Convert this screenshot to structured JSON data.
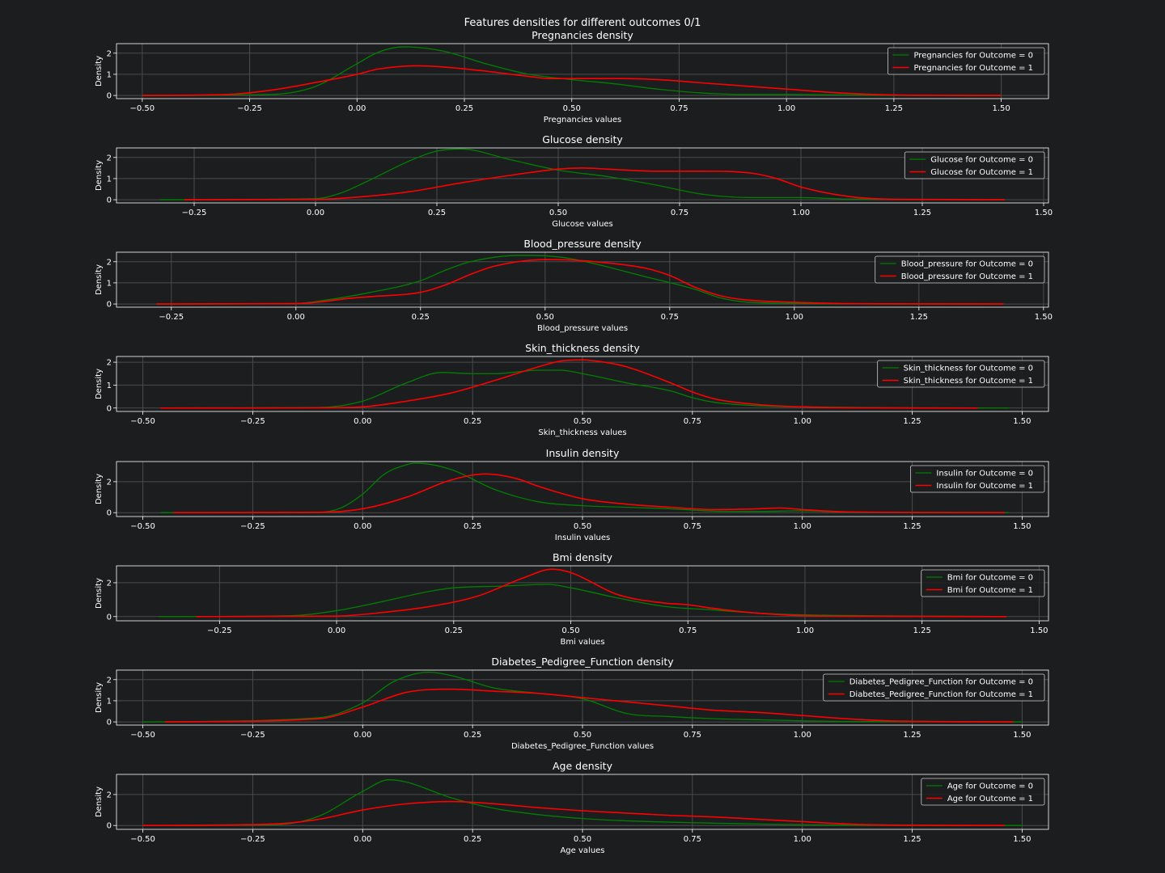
{
  "figure": {
    "suptitle": "Features densities for different outcomes 0/1",
    "background": "#1c1d1f",
    "axes_color": "#ffffff",
    "grid_color": "#4a4b4d",
    "series_colors": [
      "#008000",
      "#ff0000"
    ]
  },
  "chart_data": [
    {
      "type": "line",
      "title": "Pregnancies density",
      "xlabel": "Pregnancies values",
      "ylabel": "Density",
      "xlim": [
        -0.56,
        1.61
      ],
      "ylim": [
        -0.15,
        2.45
      ],
      "xticks": [
        -0.5,
        -0.25,
        0,
        0.25,
        0.5,
        0.75,
        1.0,
        1.25,
        1.5
      ],
      "xtick_labels": [
        "−0.50",
        "−0.25",
        "0.00",
        "0.25",
        "0.50",
        "0.75",
        "1.00",
        "1.25",
        "1.50"
      ],
      "yticks": [
        0,
        1,
        2
      ],
      "ytick_labels": [
        "0",
        "1",
        "2"
      ],
      "legend_position": "upper right",
      "grid": true,
      "series": [
        {
          "name": "Pregnancies for Outcome = 0",
          "color": "#008000",
          "x": [
            -0.5,
            -0.2,
            -0.1,
            0.0,
            0.05,
            0.11,
            0.2,
            0.3,
            0.4,
            0.5,
            0.6,
            0.7,
            0.8,
            0.9,
            1.0,
            1.1,
            1.2,
            1.5
          ],
          "y": [
            0.0,
            0.05,
            0.4,
            1.5,
            2.05,
            2.3,
            2.1,
            1.5,
            1.0,
            0.75,
            0.55,
            0.3,
            0.12,
            0.05,
            0.05,
            0.03,
            0.01,
            0.0
          ]
        },
        {
          "name": "Pregnancies for Outcome = 1",
          "color": "#ff0000",
          "x": [
            -0.5,
            -0.3,
            -0.2,
            -0.1,
            0.0,
            0.05,
            0.14,
            0.2,
            0.3,
            0.4,
            0.45,
            0.55,
            0.62,
            0.7,
            0.8,
            0.9,
            1.0,
            1.1,
            1.2,
            1.3,
            1.5
          ],
          "y": [
            0.0,
            0.05,
            0.25,
            0.6,
            1.0,
            1.25,
            1.4,
            1.35,
            1.15,
            0.9,
            0.8,
            0.8,
            0.8,
            0.75,
            0.6,
            0.45,
            0.3,
            0.15,
            0.05,
            0.01,
            0.0
          ]
        }
      ]
    },
    {
      "type": "line",
      "title": "Glucose density",
      "xlabel": "Glucose values",
      "ylabel": "Density",
      "xlim": [
        -0.41,
        1.51
      ],
      "ylim": [
        -0.15,
        2.45
      ],
      "xticks": [
        -0.25,
        0,
        0.25,
        0.5,
        0.75,
        1.0,
        1.25,
        1.5
      ],
      "xtick_labels": [
        "−0.25",
        "0.00",
        "0.25",
        "0.50",
        "0.75",
        "1.00",
        "1.25",
        "1.50"
      ],
      "yticks": [
        0,
        1,
        2
      ],
      "ytick_labels": [
        "0",
        "1",
        "2"
      ],
      "legend_position": "upper right",
      "grid": true,
      "series": [
        {
          "name": "Glucose for Outcome = 0",
          "color": "#008000",
          "x": [
            -0.32,
            0.0,
            0.05,
            0.1,
            0.2,
            0.25,
            0.3,
            0.4,
            0.5,
            0.6,
            0.7,
            0.8,
            0.9,
            1.0,
            1.1,
            1.42
          ],
          "y": [
            0.0,
            0.05,
            0.3,
            0.8,
            1.9,
            2.3,
            2.4,
            1.9,
            1.4,
            1.1,
            0.7,
            0.25,
            0.1,
            0.1,
            0.03,
            0.0
          ]
        },
        {
          "name": "Glucose for Outcome = 1",
          "color": "#ff0000",
          "x": [
            -0.27,
            0.0,
            0.1,
            0.2,
            0.3,
            0.4,
            0.5,
            0.55,
            0.6,
            0.7,
            0.8,
            0.9,
            0.95,
            1.0,
            1.1,
            1.2,
            1.42
          ],
          "y": [
            0.0,
            0.02,
            0.15,
            0.4,
            0.8,
            1.15,
            1.45,
            1.5,
            1.45,
            1.35,
            1.35,
            1.25,
            1.0,
            0.6,
            0.15,
            0.02,
            0.0
          ]
        }
      ]
    },
    {
      "type": "line",
      "title": "Blood_pressure density",
      "xlabel": "Blood_pressure values",
      "ylabel": "Density",
      "xlim": [
        -0.36,
        1.51
      ],
      "ylim": [
        -0.15,
        2.45
      ],
      "xticks": [
        -0.25,
        0,
        0.25,
        0.5,
        0.75,
        1.0,
        1.25,
        1.5
      ],
      "xtick_labels": [
        "−0.25",
        "0.00",
        "0.25",
        "0.50",
        "0.75",
        "1.00",
        "1.25",
        "1.50"
      ],
      "yticks": [
        0,
        1,
        2
      ],
      "ytick_labels": [
        "0",
        "1",
        "2"
      ],
      "legend_position": "upper right",
      "grid": true,
      "series": [
        {
          "name": "Blood_pressure for Outcome = 0",
          "color": "#008000",
          "x": [
            -0.28,
            0.0,
            0.05,
            0.15,
            0.25,
            0.3,
            0.35,
            0.45,
            0.5,
            0.55,
            0.6,
            0.7,
            0.8,
            0.85,
            0.9,
            1.0,
            1.1,
            1.42
          ],
          "y": [
            0.0,
            0.02,
            0.15,
            0.55,
            1.1,
            1.6,
            2.0,
            2.3,
            2.28,
            2.15,
            1.9,
            1.3,
            0.7,
            0.3,
            0.1,
            0.03,
            0.01,
            0.0
          ]
        },
        {
          "name": "Blood_pressure for Outcome = 1",
          "color": "#ff0000",
          "x": [
            -0.28,
            0.0,
            0.05,
            0.1,
            0.15,
            0.25,
            0.3,
            0.35,
            0.4,
            0.5,
            0.55,
            0.6,
            0.7,
            0.75,
            0.8,
            0.85,
            0.9,
            1.0,
            1.1,
            1.42
          ],
          "y": [
            0.0,
            0.02,
            0.1,
            0.25,
            0.35,
            0.55,
            0.9,
            1.4,
            1.8,
            2.1,
            2.08,
            2.0,
            1.7,
            1.35,
            0.8,
            0.4,
            0.2,
            0.08,
            0.02,
            0.0
          ]
        }
      ]
    },
    {
      "type": "line",
      "title": "Skin_thickness density",
      "xlabel": "Skin_thickness values",
      "ylabel": "Density",
      "xlim": [
        -0.56,
        1.56
      ],
      "ylim": [
        -0.15,
        2.25
      ],
      "xticks": [
        -0.5,
        -0.25,
        0,
        0.25,
        0.5,
        0.75,
        1.0,
        1.25,
        1.5
      ],
      "xtick_labels": [
        "−0.50",
        "−0.25",
        "0.00",
        "0.25",
        "0.50",
        "0.75",
        "1.00",
        "1.25",
        "1.50"
      ],
      "yticks": [
        0,
        1,
        2
      ],
      "ytick_labels": [
        "0",
        "1",
        "2"
      ],
      "legend_position": "upper right",
      "grid": true,
      "series": [
        {
          "name": "Skin_thickness for Outcome = 0",
          "color": "#008000",
          "x": [
            -0.46,
            -0.1,
            0.0,
            0.1,
            0.18,
            0.25,
            0.3,
            0.4,
            0.45,
            0.5,
            0.6,
            0.7,
            0.75,
            0.8,
            0.9,
            1.0,
            1.2,
            1.47
          ],
          "y": [
            0.0,
            0.02,
            0.3,
            1.1,
            1.55,
            1.5,
            1.5,
            1.65,
            1.65,
            1.5,
            1.1,
            0.75,
            0.45,
            0.25,
            0.1,
            0.05,
            0.01,
            0.0
          ]
        },
        {
          "name": "Skin_thickness for Outcome = 1",
          "color": "#ff0000",
          "x": [
            -0.46,
            -0.1,
            0.0,
            0.1,
            0.2,
            0.3,
            0.4,
            0.45,
            0.5,
            0.55,
            0.6,
            0.7,
            0.75,
            0.8,
            0.9,
            1.0,
            1.1,
            1.4
          ],
          "y": [
            0.0,
            0.01,
            0.05,
            0.3,
            0.65,
            1.2,
            1.8,
            2.05,
            2.1,
            2.0,
            1.8,
            1.1,
            0.7,
            0.4,
            0.15,
            0.05,
            0.01,
            0.0
          ]
        }
      ]
    },
    {
      "type": "line",
      "title": "Insulin density",
      "xlabel": "Insulin values",
      "ylabel": "Density",
      "xlim": [
        -0.56,
        1.56
      ],
      "ylim": [
        -0.25,
        3.3
      ],
      "xticks": [
        -0.5,
        -0.25,
        0,
        0.25,
        0.5,
        0.75,
        1.0,
        1.25,
        1.5
      ],
      "xtick_labels": [
        "−0.50",
        "−0.25",
        "0.00",
        "0.25",
        "0.50",
        "0.75",
        "1.00",
        "1.25",
        "1.50"
      ],
      "yticks": [
        0,
        2
      ],
      "ytick_labels": [
        "0",
        "2"
      ],
      "legend_position": "upper right",
      "grid": true,
      "series": [
        {
          "name": "Insulin for Outcome = 0",
          "color": "#008000",
          "x": [
            -0.46,
            -0.1,
            -0.05,
            0.0,
            0.05,
            0.1,
            0.12,
            0.2,
            0.3,
            0.4,
            0.5,
            0.6,
            0.7,
            0.8,
            0.9,
            1.0,
            1.1,
            1.47
          ],
          "y": [
            0.0,
            0.02,
            0.3,
            1.2,
            2.5,
            3.1,
            3.2,
            2.8,
            1.5,
            0.7,
            0.45,
            0.35,
            0.25,
            0.1,
            0.08,
            0.12,
            0.03,
            0.0
          ]
        },
        {
          "name": "Insulin for Outcome = 1",
          "color": "#ff0000",
          "x": [
            -0.43,
            -0.1,
            0.0,
            0.1,
            0.2,
            0.28,
            0.35,
            0.4,
            0.5,
            0.6,
            0.7,
            0.8,
            0.9,
            0.95,
            1.0,
            1.1,
            1.46
          ],
          "y": [
            0.0,
            0.02,
            0.25,
            1.0,
            2.1,
            2.5,
            2.2,
            1.7,
            0.9,
            0.55,
            0.35,
            0.2,
            0.25,
            0.3,
            0.2,
            0.05,
            0.0
          ]
        }
      ]
    },
    {
      "type": "line",
      "title": "Bmi density",
      "xlabel": "Bmi values",
      "ylabel": "Density",
      "xlim": [
        -0.47,
        1.52
      ],
      "ylim": [
        -0.25,
        3.0
      ],
      "xticks": [
        -0.25,
        0,
        0.25,
        0.5,
        0.75,
        1.0,
        1.25,
        1.5
      ],
      "xtick_labels": [
        "−0.25",
        "0.00",
        "0.25",
        "0.50",
        "0.75",
        "1.00",
        "1.25",
        "1.50"
      ],
      "yticks": [
        0,
        2
      ],
      "ytick_labels": [
        "0",
        "2"
      ],
      "legend_position": "upper right",
      "grid": true,
      "series": [
        {
          "name": "Bmi for Outcome = 0",
          "color": "#008000",
          "x": [
            -0.38,
            -0.1,
            0.0,
            0.1,
            0.2,
            0.25,
            0.35,
            0.45,
            0.5,
            0.6,
            0.7,
            0.8,
            0.9,
            1.0,
            1.43
          ],
          "y": [
            0.0,
            0.05,
            0.35,
            0.9,
            1.5,
            1.7,
            1.8,
            1.9,
            1.7,
            1.1,
            0.6,
            0.4,
            0.2,
            0.1,
            0.0
          ]
        },
        {
          "name": "Bmi for Outcome = 1",
          "color": "#ff0000",
          "x": [
            -0.3,
            0.0,
            0.1,
            0.2,
            0.3,
            0.4,
            0.46,
            0.5,
            0.6,
            0.7,
            0.75,
            0.8,
            0.9,
            1.0,
            1.1,
            1.43
          ],
          "y": [
            0.0,
            0.03,
            0.25,
            0.6,
            1.2,
            2.3,
            2.8,
            2.6,
            1.3,
            0.8,
            0.7,
            0.5,
            0.2,
            0.05,
            0.02,
            0.0
          ]
        }
      ]
    },
    {
      "type": "line",
      "title": "Diabetes_Pedigree_Function density",
      "xlabel": "Diabetes_Pedigree_Function values",
      "ylabel": "Density",
      "xlim": [
        -0.56,
        1.56
      ],
      "ylim": [
        -0.15,
        2.45
      ],
      "xticks": [
        -0.5,
        -0.25,
        0,
        0.25,
        0.5,
        0.75,
        1.0,
        1.25,
        1.5
      ],
      "xtick_labels": [
        "−0.50",
        "−0.25",
        "0.00",
        "0.25",
        "0.50",
        "0.75",
        "1.00",
        "1.25",
        "1.50"
      ],
      "yticks": [
        0,
        1,
        2
      ],
      "ytick_labels": [
        "0",
        "1",
        "2"
      ],
      "legend_position": "upper right",
      "grid": true,
      "series": [
        {
          "name": "Diabetes_Pedigree_Function for Outcome = 0",
          "color": "#008000",
          "x": [
            -0.5,
            -0.1,
            0.0,
            0.07,
            0.15,
            0.2,
            0.3,
            0.4,
            0.5,
            0.6,
            0.7,
            0.8,
            0.9,
            1.0,
            1.1,
            1.5
          ],
          "y": [
            0.0,
            0.2,
            0.9,
            1.9,
            2.35,
            2.2,
            1.6,
            1.35,
            1.1,
            0.4,
            0.25,
            0.15,
            0.1,
            0.05,
            0.02,
            0.0
          ]
        },
        {
          "name": "Diabetes_Pedigree_Function for Outcome = 1",
          "color": "#ff0000",
          "x": [
            -0.45,
            -0.1,
            0.0,
            0.1,
            0.2,
            0.3,
            0.4,
            0.5,
            0.6,
            0.7,
            0.8,
            0.9,
            1.0,
            1.1,
            1.2,
            1.48
          ],
          "y": [
            0.0,
            0.15,
            0.7,
            1.4,
            1.55,
            1.45,
            1.35,
            1.15,
            0.95,
            0.75,
            0.55,
            0.45,
            0.3,
            0.15,
            0.05,
            0.0
          ]
        }
      ]
    },
    {
      "type": "line",
      "title": "Age density",
      "xlabel": "Age values",
      "ylabel": "Density",
      "xlim": [
        -0.56,
        1.56
      ],
      "ylim": [
        -0.25,
        3.3
      ],
      "xticks": [
        -0.5,
        -0.25,
        0,
        0.25,
        0.5,
        0.75,
        1.0,
        1.25,
        1.5
      ],
      "xtick_labels": [
        "−0.50",
        "−0.25",
        "0.00",
        "0.25",
        "0.50",
        "0.75",
        "1.00",
        "1.25",
        "1.50"
      ],
      "yticks": [
        0,
        2
      ],
      "ytick_labels": [
        "0",
        "2"
      ],
      "legend_position": "upper right",
      "grid": true,
      "series": [
        {
          "name": "Age for Outcome = 0",
          "color": "#008000",
          "x": [
            -0.5,
            -0.2,
            -0.1,
            0.0,
            0.06,
            0.1,
            0.2,
            0.3,
            0.4,
            0.5,
            0.6,
            0.8,
            1.0,
            1.1,
            1.5
          ],
          "y": [
            0.0,
            0.05,
            0.6,
            2.2,
            2.95,
            2.8,
            1.8,
            1.1,
            0.7,
            0.45,
            0.3,
            0.15,
            0.05,
            0.02,
            0.0
          ]
        },
        {
          "name": "Age for Outcome = 1",
          "color": "#ff0000",
          "x": [
            -0.5,
            -0.2,
            -0.1,
            0.0,
            0.1,
            0.2,
            0.3,
            0.4,
            0.5,
            0.6,
            0.7,
            0.8,
            0.9,
            1.0,
            1.1,
            1.2,
            1.46
          ],
          "y": [
            0.0,
            0.1,
            0.4,
            1.0,
            1.4,
            1.55,
            1.4,
            1.15,
            0.95,
            0.8,
            0.65,
            0.55,
            0.4,
            0.25,
            0.1,
            0.03,
            0.0
          ]
        }
      ]
    }
  ]
}
